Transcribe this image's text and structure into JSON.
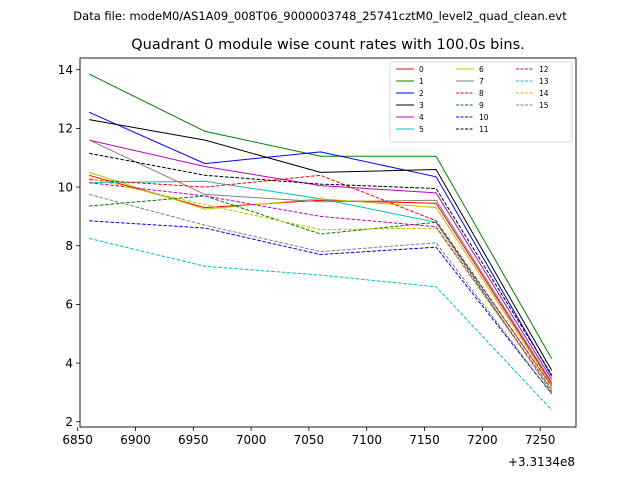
{
  "figure": {
    "suptitle": "Data file: modeM0/AS1A09_008T06_9000003748_25741cztM0_level2_quad_clean.evt"
  },
  "chart_data": {
    "type": "line",
    "title": "Quadrant 0 module wise count rates with 100.0s bins.",
    "xlabel": "",
    "ylabel": "",
    "x_offset_label": "+3.3134e8",
    "x": [
      6860,
      6960,
      7060,
      7160,
      7260
    ],
    "xlim": [
      6852,
      7281
    ],
    "ylim": [
      1.82,
      14.4
    ],
    "xticks": [
      6850,
      6900,
      6950,
      7000,
      7050,
      7100,
      7150,
      7200,
      7250
    ],
    "yticks": [
      2,
      4,
      6,
      8,
      10,
      12,
      14
    ],
    "grid": false,
    "legend_position": "top-right",
    "series": [
      {
        "name": "0",
        "color": "#ff0000",
        "style": "solid",
        "values": [
          10.4,
          9.3,
          9.55,
          9.45,
          3.3
        ]
      },
      {
        "name": "1",
        "color": "#008000",
        "style": "solid",
        "values": [
          13.85,
          11.9,
          11.05,
          11.05,
          4.15
        ]
      },
      {
        "name": "2",
        "color": "#0000ff",
        "style": "solid",
        "values": [
          12.55,
          10.8,
          11.2,
          10.35,
          3.55
        ]
      },
      {
        "name": "3",
        "color": "#000000",
        "style": "solid",
        "values": [
          12.3,
          11.6,
          10.5,
          10.6,
          3.75
        ]
      },
      {
        "name": "4",
        "color": "#bf00bf",
        "style": "solid",
        "values": [
          11.6,
          10.7,
          10.05,
          9.8,
          3.45
        ]
      },
      {
        "name": "5",
        "color": "#00bfbf",
        "style": "solid",
        "values": [
          10.15,
          10.2,
          9.6,
          8.8,
          3.2
        ]
      },
      {
        "name": "6",
        "color": "#bfbf00",
        "style": "solid",
        "values": [
          10.5,
          9.25,
          9.6,
          9.3,
          3.25
        ]
      },
      {
        "name": "7",
        "color": "#808080",
        "style": "solid",
        "values": [
          11.6,
          9.75,
          9.5,
          9.55,
          3.35
        ]
      },
      {
        "name": "8",
        "color": "#ff0000",
        "style": "dashed",
        "values": [
          10.25,
          10.0,
          10.4,
          8.85,
          3.2
        ]
      },
      {
        "name": "9",
        "color": "#008000",
        "style": "dashed",
        "values": [
          9.35,
          9.7,
          8.4,
          8.8,
          3.0
        ]
      },
      {
        "name": "10",
        "color": "#0000ff",
        "style": "dashed",
        "values": [
          8.85,
          8.6,
          7.7,
          7.95,
          2.95
        ]
      },
      {
        "name": "11",
        "color": "#000000",
        "style": "dashed",
        "values": [
          11.15,
          10.4,
          10.1,
          9.95,
          3.6
        ]
      },
      {
        "name": "12",
        "color": "#bf00bf",
        "style": "dashed",
        "values": [
          10.15,
          9.7,
          9.0,
          8.65,
          3.1
        ]
      },
      {
        "name": "13",
        "color": "#00bfbf",
        "style": "dashed",
        "values": [
          8.25,
          7.3,
          7.0,
          6.6,
          2.4
        ]
      },
      {
        "name": "14",
        "color": "#bfbf00",
        "style": "dashed",
        "values": [
          10.3,
          9.4,
          8.55,
          8.6,
          3.05
        ]
      },
      {
        "name": "15",
        "color": "#808080",
        "style": "dashed",
        "values": [
          9.75,
          8.7,
          7.8,
          8.1,
          2.95
        ]
      }
    ]
  }
}
